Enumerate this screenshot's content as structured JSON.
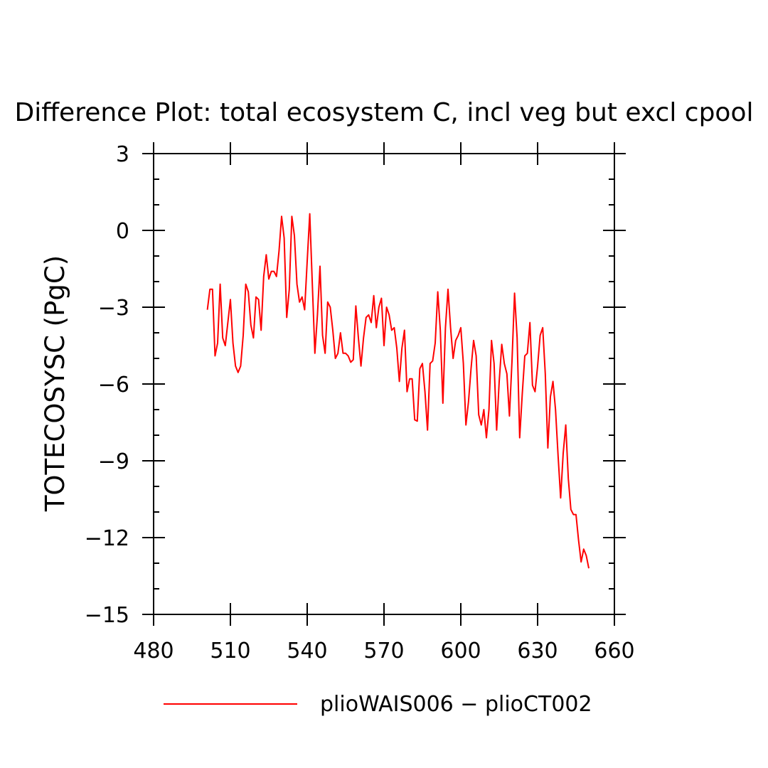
{
  "chart_data": {
    "type": "line",
    "title": "Difference Plot: total ecosystem C, incl veg but excl cpool",
    "xlabel": "",
    "ylabel": "TOTECOSYSC  (PgC)",
    "xlim": [
      480,
      660
    ],
    "ylim": [
      -15,
      3
    ],
    "x_ticks": [
      "480",
      "510",
      "540",
      "570",
      "600",
      "630",
      "660"
    ],
    "y_ticks": [
      "3",
      "0",
      "−3",
      "−6",
      "−9",
      "−12",
      "−15"
    ],
    "x_tick_values": [
      480,
      510,
      540,
      570,
      600,
      630,
      660
    ],
    "y_tick_values": [
      3,
      0,
      -3,
      -6,
      -9,
      -12,
      -15
    ],
    "grid": false,
    "legend_position": "bottom-center",
    "series": [
      {
        "name": "plioWAIS006 − plioCT002",
        "color": "#ff0000",
        "x": [
          501,
          502,
          503,
          504,
          505,
          506,
          507,
          508,
          509,
          510,
          511,
          512,
          513,
          514,
          515,
          516,
          517,
          518,
          519,
          520,
          521,
          522,
          523,
          524,
          525,
          526,
          527,
          528,
          529,
          530,
          531,
          532,
          533,
          534,
          535,
          536,
          537,
          538,
          539,
          540,
          541,
          542,
          543,
          544,
          545,
          546,
          547,
          548,
          549,
          550,
          551,
          552,
          553,
          554,
          555,
          556,
          557,
          558,
          559,
          560,
          561,
          562,
          563,
          564,
          565,
          566,
          567,
          568,
          569,
          570,
          571,
          572,
          573,
          574,
          575,
          576,
          577,
          578,
          579,
          580,
          581,
          582,
          583,
          584,
          585,
          586,
          587,
          588,
          589,
          590,
          591,
          592,
          593,
          594,
          595,
          596,
          597,
          598,
          599,
          600,
          601,
          602,
          603,
          604,
          605,
          606,
          607,
          608,
          609,
          610,
          611,
          612,
          613,
          614,
          615,
          616,
          617,
          618,
          619,
          620,
          621,
          622,
          623,
          624,
          625,
          626,
          627,
          628,
          629,
          630,
          631,
          632,
          633,
          634,
          635,
          636,
          637,
          638,
          639,
          640,
          641,
          642,
          643,
          644,
          645,
          646,
          647,
          648,
          649,
          650
        ],
        "y": [
          -3.1,
          -2.3,
          -2.3,
          -4.9,
          -4.4,
          -2.1,
          -4.2,
          -4.5,
          -3.6,
          -2.7,
          -4.4,
          -5.3,
          -5.55,
          -5.3,
          -4.1,
          -2.1,
          -2.4,
          -3.7,
          -4.2,
          -2.6,
          -2.7,
          -3.9,
          -1.8,
          -0.95,
          -1.9,
          -1.6,
          -1.6,
          -1.8,
          -0.8,
          0.55,
          -0.3,
          -3.4,
          -2.3,
          0.55,
          -0.2,
          -2.1,
          -2.8,
          -2.6,
          -3.1,
          -1.2,
          0.65,
          -2.1,
          -4.8,
          -3.3,
          -1.4,
          -4.1,
          -4.8,
          -2.8,
          -3.0,
          -3.9,
          -5.0,
          -4.8,
          -4.0,
          -4.8,
          -4.8,
          -4.9,
          -5.15,
          -5.05,
          -2.95,
          -4.2,
          -5.3,
          -4.2,
          -3.4,
          -3.3,
          -3.6,
          -2.55,
          -3.8,
          -3.0,
          -2.65,
          -4.5,
          -3.0,
          -3.3,
          -3.9,
          -3.8,
          -4.6,
          -5.9,
          -4.6,
          -3.9,
          -6.3,
          -5.8,
          -5.8,
          -7.4,
          -7.45,
          -5.4,
          -5.2,
          -6.3,
          -7.8,
          -5.2,
          -5.1,
          -4.4,
          -2.4,
          -3.9,
          -6.75,
          -3.8,
          -2.3,
          -3.8,
          -5.0,
          -4.3,
          -4.1,
          -3.8,
          -5.2,
          -7.6,
          -6.7,
          -5.4,
          -4.3,
          -4.9,
          -7.2,
          -7.6,
          -7.0,
          -8.1,
          -7.0,
          -4.3,
          -5.2,
          -7.8,
          -5.9,
          -4.45,
          -5.2,
          -5.6,
          -7.25,
          -5.1,
          -2.45,
          -4.2,
          -8.1,
          -6.4,
          -4.9,
          -4.8,
          -3.6,
          -6.05,
          -6.3,
          -5.3,
          -4.1,
          -3.8,
          -5.6,
          -8.5,
          -6.5,
          -5.9,
          -7.0,
          -8.8,
          -10.45,
          -8.7,
          -7.6,
          -9.7,
          -10.9,
          -11.1,
          -11.1,
          -12.1,
          -12.95,
          -12.45,
          -12.7,
          -13.2
        ]
      }
    ]
  }
}
